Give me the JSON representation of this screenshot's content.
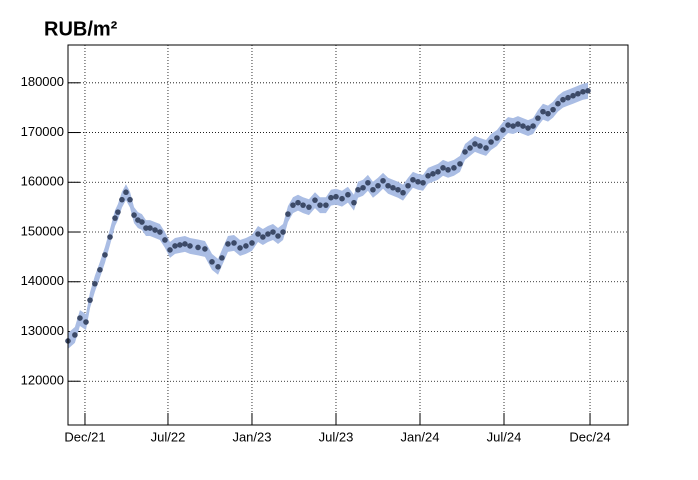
{
  "chart_data": {
    "type": "scatter",
    "title": "RUB/m²",
    "x": [
      2021.905,
      2021.946,
      2021.976,
      2022.012,
      2022.036,
      2022.065,
      2022.095,
      2022.125,
      2022.155,
      2022.185,
      2022.202,
      2022.226,
      2022.25,
      2022.274,
      2022.298,
      2022.321,
      2022.345,
      2022.369,
      2022.393,
      2022.423,
      2022.452,
      2022.482,
      2022.512,
      2022.542,
      2022.571,
      2022.601,
      2022.631,
      2022.679,
      2022.72,
      2022.762,
      2022.798,
      2022.821,
      2022.857,
      2022.893,
      2022.929,
      2022.964,
      2023.0,
      2023.036,
      2023.065,
      2023.095,
      2023.125,
      2023.155,
      2023.185,
      2023.214,
      2023.244,
      2023.274,
      2023.304,
      2023.339,
      2023.375,
      2023.405,
      2023.44,
      2023.47,
      2023.5,
      2023.536,
      2023.571,
      2023.607,
      2023.631,
      2023.661,
      2023.69,
      2023.72,
      2023.75,
      2023.78,
      2023.81,
      2023.839,
      2023.869,
      2023.899,
      2023.929,
      2023.958,
      2023.988,
      2024.018,
      2024.048,
      2024.077,
      2024.107,
      2024.137,
      2024.167,
      2024.202,
      2024.238,
      2024.268,
      2024.298,
      2024.327,
      2024.357,
      2024.393,
      2024.423,
      2024.458,
      2024.494,
      2024.524,
      2024.554,
      2024.583,
      2024.613,
      2024.643,
      2024.673,
      2024.702,
      2024.732,
      2024.762,
      2024.792,
      2024.821,
      2024.851,
      2024.881,
      2024.911,
      2024.94,
      2024.97,
      2025.0
    ],
    "values": [
      128100,
      129300,
      132700,
      131900,
      136300,
      139600,
      142400,
      145400,
      149000,
      152800,
      154000,
      156500,
      158000,
      156500,
      153400,
      152400,
      152000,
      150800,
      150800,
      150400,
      150000,
      148400,
      146400,
      147200,
      147400,
      147600,
      147200,
      146900,
      146600,
      144000,
      143000,
      144800,
      147600,
      147800,
      146800,
      147200,
      147800,
      149600,
      149000,
      149600,
      150000,
      149200,
      150000,
      153600,
      155400,
      155900,
      155400,
      155000,
      156400,
      155400,
      155400,
      156900,
      157100,
      156700,
      157500,
      155900,
      158500,
      158900,
      159900,
      158500,
      159300,
      160300,
      159300,
      158900,
      158500,
      157900,
      159300,
      160500,
      160100,
      159900,
      161300,
      161700,
      162100,
      162900,
      162500,
      162900,
      163700,
      166100,
      166900,
      167700,
      167300,
      166900,
      168100,
      168900,
      170500,
      171500,
      171300,
      171700,
      171300,
      170900,
      171300,
      172900,
      174200,
      173800,
      174600,
      175800,
      176600,
      177000,
      177400,
      177800,
      178200,
      178400
    ],
    "error": 1600,
    "color": "#3c4a68",
    "band_color": "#aabde4",
    "xlim": [
      2021.905,
      2025.238
    ],
    "ylim": [
      111200,
      187600
    ],
    "xticks": [
      {
        "value": 2022.006,
        "label": "Dec/21"
      },
      {
        "value": 2022.5,
        "label": "Jul/22"
      },
      {
        "value": 2023.0,
        "label": "Jan/23"
      },
      {
        "value": 2023.5,
        "label": "Jul/23"
      },
      {
        "value": 2024.0,
        "label": "Jan/24"
      },
      {
        "value": 2024.5,
        "label": "Jul/24"
      },
      {
        "value": 2025.012,
        "label": "Dec/24"
      }
    ],
    "yticks": [
      120000,
      130000,
      140000,
      150000,
      160000,
      170000,
      180000
    ],
    "grid": true
  }
}
